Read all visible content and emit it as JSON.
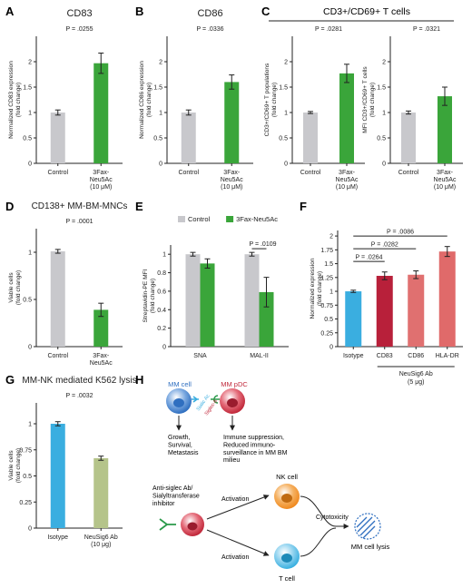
{
  "colors": {
    "grey": "#c8c8cc",
    "green": "#3aa53a",
    "blue": "#3aaee0",
    "crimson": "#b8203a",
    "salmon": "#e07070",
    "rose": "#e06a6a",
    "olive": "#b5c48a",
    "mm_cell": "#2f6fc0",
    "pdc": "#c0283a",
    "nk": "#f08a20",
    "tcell": "#3ab0e0"
  },
  "chart_data": [
    {
      "id": "A",
      "type": "bar",
      "title": "CD83",
      "ylabel": "Normalized CD83 expression\n(fold change)",
      "ylim": [
        0,
        2.5
      ],
      "yticks": [
        "0",
        "0.5",
        "1",
        "1.5",
        "2"
      ],
      "ytick_values": [
        0,
        0.5,
        1,
        1.5,
        2
      ],
      "categories": [
        "Control",
        "3Fax-\nNeu5Ac\n(10 μM)"
      ],
      "values": [
        1.0,
        1.97
      ],
      "errors": [
        0.05,
        0.2
      ],
      "colors": [
        "grey",
        "green"
      ],
      "pvalues": [
        {
          "text": "P = .0255",
          "from": 0,
          "to": 1
        }
      ]
    },
    {
      "id": "B",
      "type": "bar",
      "title": "CD86",
      "ylabel": "Normalized CD86 expression\n(fold change)",
      "ylim": [
        0,
        2.5
      ],
      "yticks": [
        "0",
        "0.5",
        "1",
        "1.5",
        "2"
      ],
      "ytick_values": [
        0,
        0.5,
        1,
        1.5,
        2
      ],
      "categories": [
        "Control",
        "3Fax-\nNeu5Ac\n(10 μM)"
      ],
      "values": [
        1.0,
        1.6
      ],
      "errors": [
        0.05,
        0.14
      ],
      "colors": [
        "grey",
        "green"
      ],
      "pvalues": [
        {
          "text": "P = .0336",
          "from": 0,
          "to": 1
        }
      ]
    },
    {
      "id": "C1",
      "type": "bar",
      "title": "",
      "ylabel": "CD3+/CD69+ T populations\n(fold change)",
      "ylim": [
        0,
        2.5
      ],
      "yticks": [
        "0",
        "0.5",
        "1",
        "1.5",
        "2"
      ],
      "ytick_values": [
        0,
        0.5,
        1,
        1.5,
        2
      ],
      "categories": [
        "Control",
        "3Fax-\nNeu5Ac\n(10 μM)"
      ],
      "values": [
        1.0,
        1.77
      ],
      "errors": [
        0.02,
        0.18
      ],
      "colors": [
        "grey",
        "green"
      ],
      "pvalues": [
        {
          "text": "P = .0281",
          "from": 0,
          "to": 1
        }
      ]
    },
    {
      "id": "C2",
      "type": "bar",
      "title": "",
      "ylabel": "MFI CD3+/CD69+ T cells\n(fold change)",
      "ylim": [
        0,
        2.5
      ],
      "yticks": [
        "0",
        "0.5",
        "1",
        "1.5",
        "2"
      ],
      "ytick_values": [
        0,
        0.5,
        1,
        1.5,
        2
      ],
      "categories": [
        "Control",
        "3Fax-\nNeu5Ac\n(10 μM)"
      ],
      "values": [
        1.0,
        1.32
      ],
      "errors": [
        0.03,
        0.18
      ],
      "colors": [
        "grey",
        "green"
      ],
      "pvalues": [
        {
          "text": "P = .0321",
          "from": 0,
          "to": 1
        }
      ]
    },
    {
      "id": "D",
      "type": "bar",
      "title": "CD138+ MM-BM-MNCs",
      "ylabel": "Viable cells\n(fold change)",
      "ylim": [
        0,
        1.25
      ],
      "yticks": [
        "0",
        "0.5",
        "1"
      ],
      "ytick_values": [
        0,
        0.5,
        1
      ],
      "categories": [
        "Control",
        "3Fax-\nNeu5Ac"
      ],
      "values": [
        1.01,
        0.39
      ],
      "errors": [
        0.02,
        0.07
      ],
      "colors": [
        "grey",
        "green"
      ],
      "pvalues": [
        {
          "text": "P = .0001",
          "from": 0,
          "to": 1
        }
      ]
    },
    {
      "id": "E",
      "type": "grouped-bar",
      "title": "",
      "ylabel": "Streptavidin-PE MFI\n(fold change)",
      "ylim": [
        0,
        1.1
      ],
      "yticks": [
        "0",
        "0.2",
        "0.4",
        "0.6",
        "0.8",
        "1"
      ],
      "ytick_values": [
        0,
        0.2,
        0.4,
        0.6,
        0.8,
        1
      ],
      "categories": [
        "SNA",
        "MAL-II"
      ],
      "series": [
        {
          "name": "Control",
          "color": "grey",
          "values": [
            1.0,
            1.0
          ],
          "errors": [
            0.02,
            0.02
          ]
        },
        {
          "name": "3Fax-Neu5Ac",
          "color": "green",
          "values": [
            0.9,
            0.59
          ],
          "errors": [
            0.05,
            0.16
          ]
        }
      ],
      "legend": "top",
      "pvalues": [
        {
          "text": "P = .0109",
          "group": 1
        }
      ]
    },
    {
      "id": "F",
      "type": "bar",
      "title": "",
      "ylabel": "Normalized expression\n(fold change)",
      "ylim": [
        0,
        2.1
      ],
      "yticks": [
        "0",
        "0.25",
        "0.5",
        "0.75",
        "1",
        "1.25",
        "1.5",
        "1.75",
        "2"
      ],
      "ytick_values": [
        0,
        0.25,
        0.5,
        0.75,
        1,
        1.25,
        1.5,
        1.75,
        2
      ],
      "categories": [
        "Isotype",
        "CD83",
        "CD86",
        "HLA-DR"
      ],
      "values": [
        1.0,
        1.28,
        1.3,
        1.72
      ],
      "errors": [
        0.02,
        0.07,
        0.07,
        0.09
      ],
      "colors": [
        "blue",
        "crimson",
        "salmon",
        "rose"
      ],
      "group_label": "NeuSig6 Ab\n(5 μg)",
      "group_range": [
        1,
        3
      ],
      "pvalues": [
        {
          "text": "P = .0264",
          "from": 0,
          "to": 1,
          "y": 1.54
        },
        {
          "text": "P = .0282",
          "from": 0,
          "to": 2,
          "y": 1.77
        },
        {
          "text": "P = .0086",
          "from": 0,
          "to": 3,
          "y": 2.0
        }
      ]
    },
    {
      "id": "G",
      "type": "bar",
      "title": "MM-NK mediated K562 lysis",
      "ylabel": "Viable cells\n(fold change)",
      "ylim": [
        0,
        1.2
      ],
      "yticks": [
        "0",
        "0.25",
        "0.5",
        "0.75",
        "1"
      ],
      "ytick_values": [
        0,
        0.25,
        0.5,
        0.75,
        1
      ],
      "categories": [
        "Isotype",
        "NeuSig6 Ab\n(10 μg)"
      ],
      "values": [
        1.0,
        0.67
      ],
      "errors": [
        0.02,
        0.02
      ],
      "colors": [
        "blue",
        "olive"
      ],
      "pvalues": [
        {
          "text": "P = .0032",
          "from": 0,
          "to": 1
        }
      ]
    }
  ],
  "panel_letters": [
    "A",
    "B",
    "C",
    "D",
    "E",
    "F",
    "G",
    "H"
  ],
  "panel_c_header": "CD3+/CD69+ T cells",
  "diagram": {
    "mm_cell": "MM cell",
    "mm_pdc": "MM pDC",
    "sialic_label": "Sialic Ac",
    "siglec_label": "Siglec-6",
    "left_outcome": "Growth,\nSurvival,\nMetastasis",
    "right_outcome": "Immune suppression,\nReduced immuno-\nsurveillance in MM BM\nmilieu",
    "inhibitor": "Anti-siglec Ab/\nSialyltransferase\ninhibitor",
    "activation_top": "Activation",
    "activation_bottom": "Activation",
    "nk_cell": "NK cell",
    "t_cell": "T cell",
    "cytotoxicity": "Cytotoxicity",
    "lysis": "MM cell lysis"
  }
}
